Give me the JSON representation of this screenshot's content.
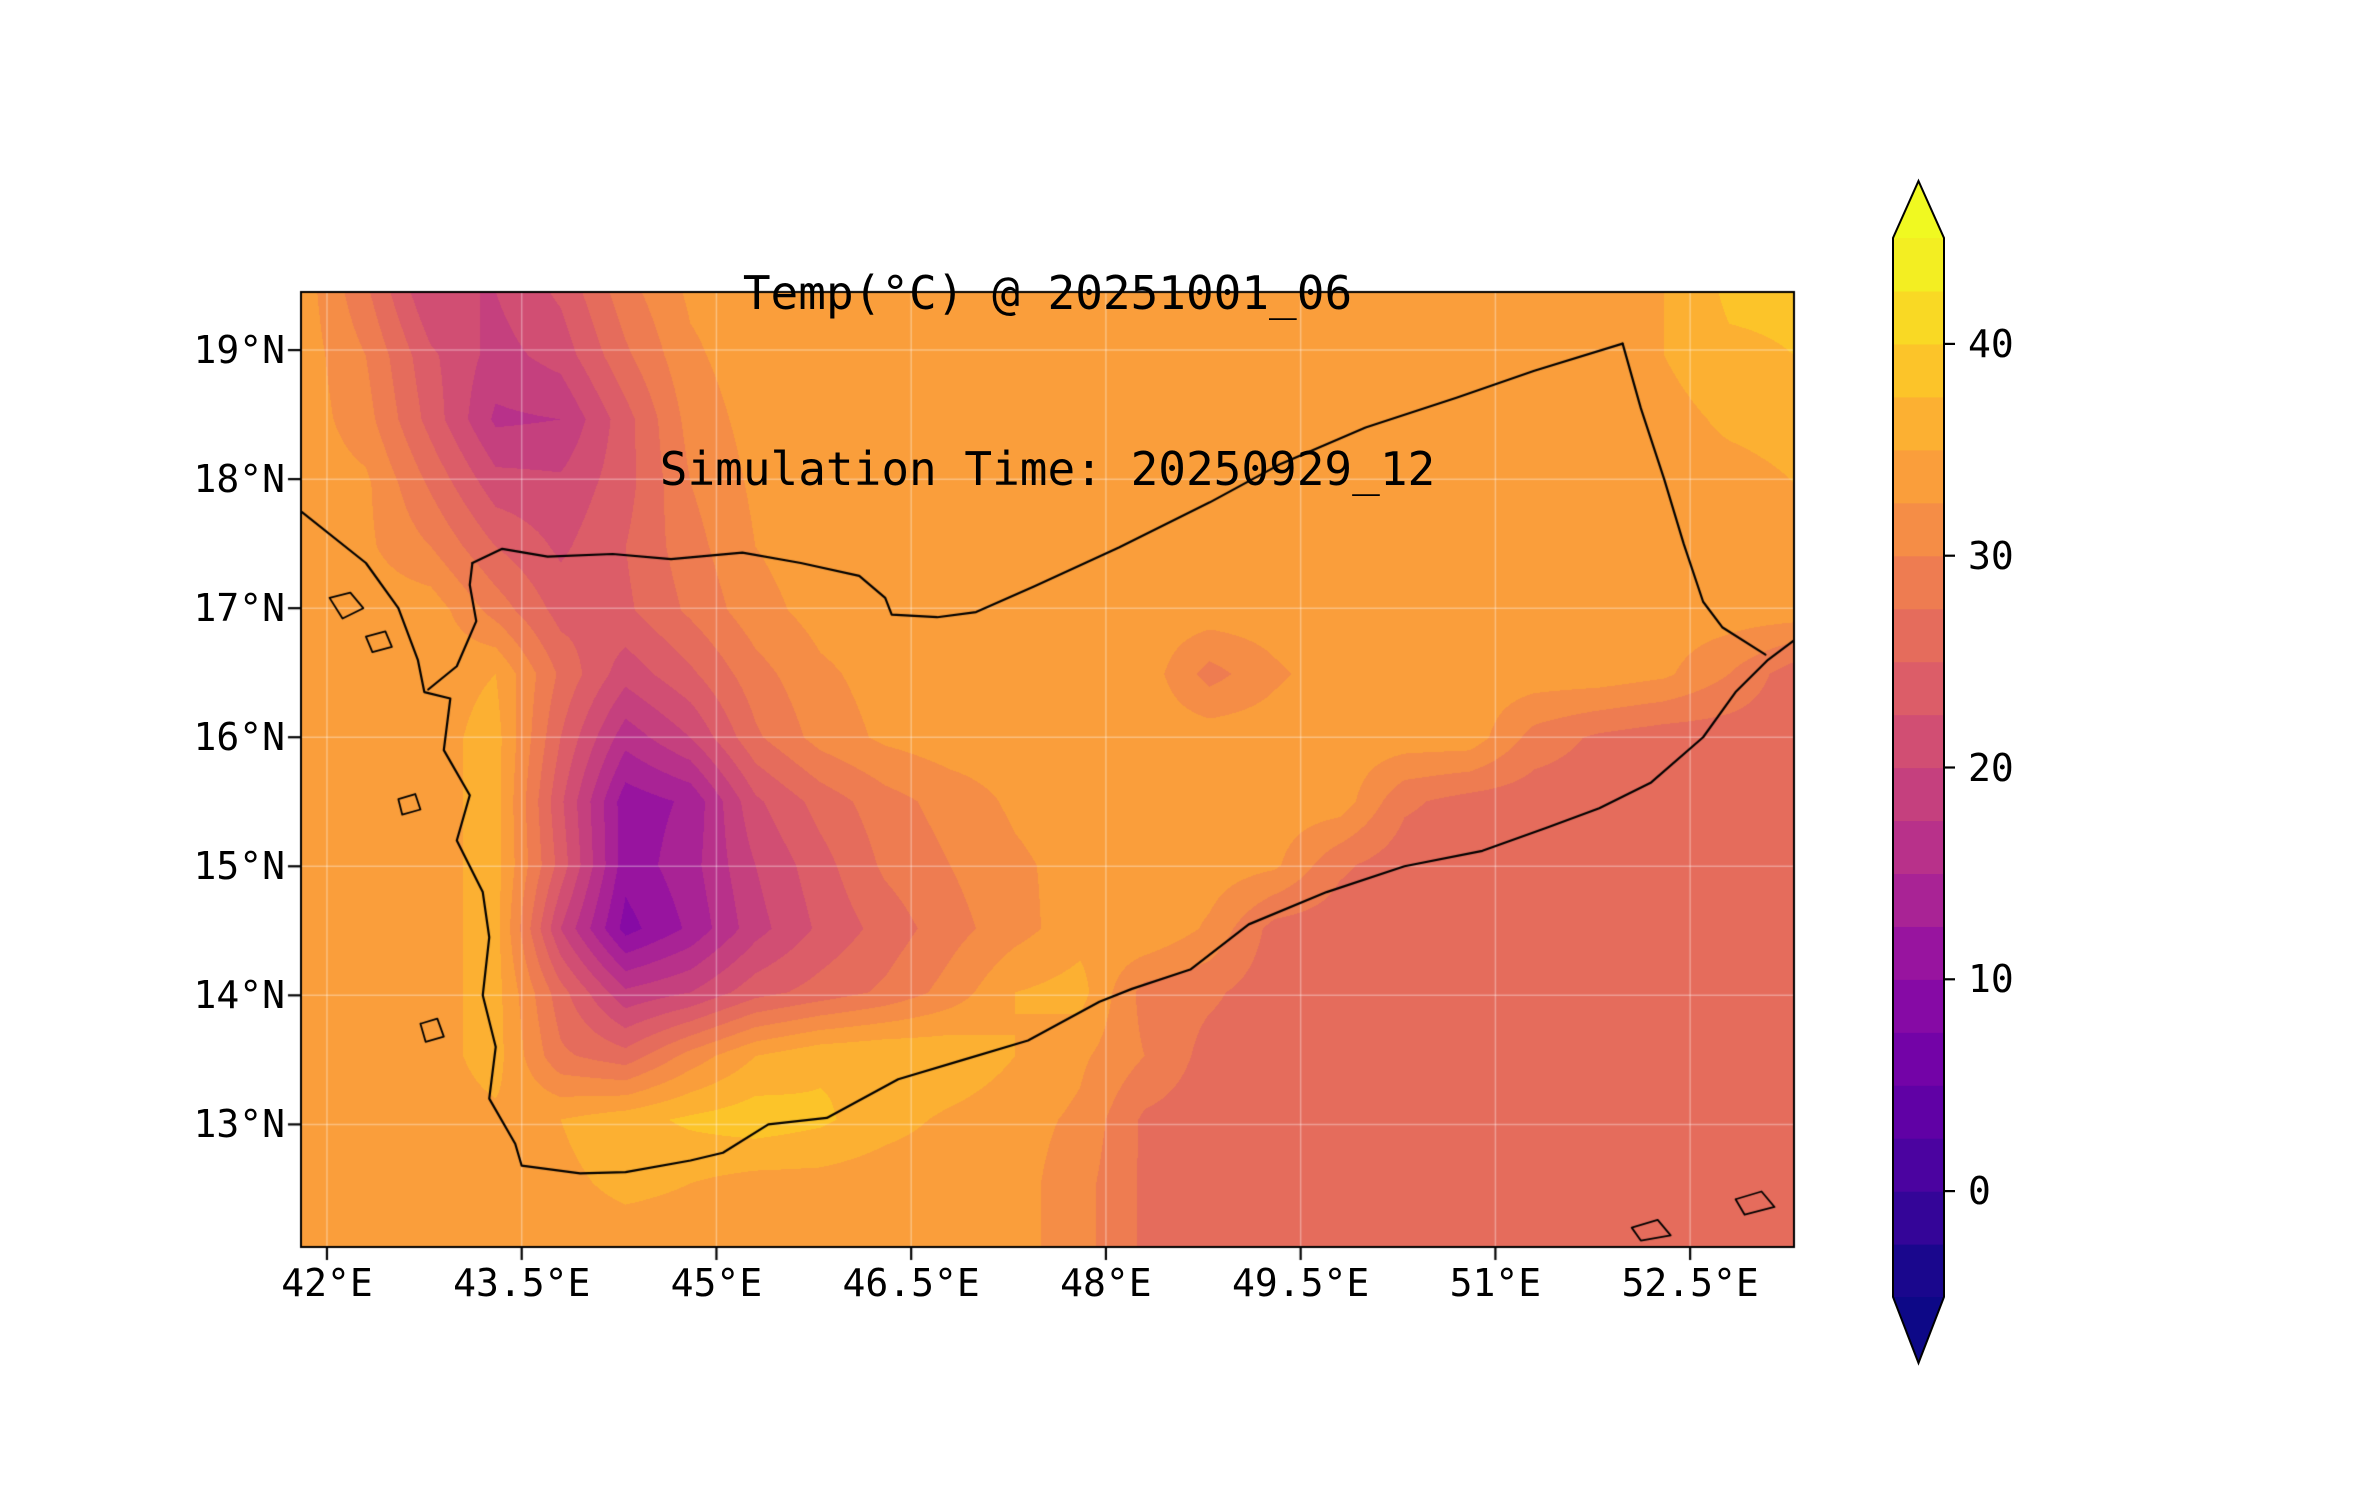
{
  "title": {
    "line1": "Temp(°C) @ 20251001_06",
    "line2": "Simulation Time: 20250929_12"
  },
  "colors": {
    "background": "#ffffff",
    "text": "#000000",
    "map_outline": "#000000"
  },
  "chart_data": {
    "type": "heatmap",
    "subtype": "filled-contour-map",
    "title": "Temp(°C) @ 20251001_06",
    "subtitle": "Simulation Time: 20250929_12",
    "units": "°C",
    "grid_on": true,
    "x_axis": {
      "range": [
        41.8,
        53.3
      ],
      "ticks": [
        {
          "value": 42,
          "label": "42°E"
        },
        {
          "value": 43.5,
          "label": "43.5°E"
        },
        {
          "value": 45,
          "label": "45°E"
        },
        {
          "value": 46.5,
          "label": "46.5°E"
        },
        {
          "value": 48,
          "label": "48°E"
        },
        {
          "value": 49.5,
          "label": "49.5°E"
        },
        {
          "value": 51,
          "label": "51°E"
        },
        {
          "value": 52.5,
          "label": "52.5°E"
        }
      ]
    },
    "y_axis": {
      "range": [
        12.05,
        19.45
      ],
      "ticks": [
        {
          "value": 19,
          "label": "19°N"
        },
        {
          "value": 18,
          "label": "18°N"
        },
        {
          "value": 17,
          "label": "17°N"
        },
        {
          "value": 16,
          "label": "16°N"
        },
        {
          "value": 15,
          "label": "15°N"
        },
        {
          "value": 14,
          "label": "14°N"
        },
        {
          "value": 13,
          "label": "13°N"
        }
      ]
    },
    "colorbar": {
      "levels_min": -5,
      "levels_max": 45,
      "level_step": 2.5,
      "extend": "both",
      "colormap": "plasma",
      "ticks": [
        {
          "value": 40,
          "label": "40"
        },
        {
          "value": 30,
          "label": "30"
        },
        {
          "value": 20,
          "label": "20"
        },
        {
          "value": 10,
          "label": "10"
        },
        {
          "value": 0,
          "label": "0"
        }
      ],
      "colormap_anchors": [
        {
          "t": 0.0,
          "color": "#0d0887"
        },
        {
          "t": 0.1,
          "color": "#41049d"
        },
        {
          "t": 0.2,
          "color": "#6a00a8"
        },
        {
          "t": 0.3,
          "color": "#8f0da4"
        },
        {
          "t": 0.4,
          "color": "#b12a90"
        },
        {
          "t": 0.5,
          "color": "#cc4778"
        },
        {
          "t": 0.6,
          "color": "#e16462"
        },
        {
          "t": 0.7,
          "color": "#f2844b"
        },
        {
          "t": 0.8,
          "color": "#fca636"
        },
        {
          "t": 0.9,
          "color": "#fcce25"
        },
        {
          "t": 1.0,
          "color": "#f0f921"
        }
      ]
    },
    "grid": {
      "lon_min": 41.8,
      "lon_max": 53.3,
      "lat_min": 12.05,
      "lat_max": 19.45,
      "ncols": 24,
      "nrows": 16,
      "values_c": [
        [
          34,
          28,
          20,
          20,
          23,
          29,
          33,
          34,
          34,
          34,
          34,
          34,
          34,
          34,
          34,
          34,
          34,
          34,
          34,
          34,
          34,
          35,
          38,
          38
        ],
        [
          34,
          30,
          23,
          19,
          21,
          27,
          32,
          34,
          34,
          34,
          34,
          34,
          34,
          34,
          34,
          34,
          34,
          34,
          34,
          34,
          34,
          35,
          37,
          37.5
        ],
        [
          34,
          31,
          24,
          17,
          17.5,
          24,
          31,
          33.5,
          34,
          34,
          34,
          34,
          34,
          34,
          34,
          34,
          34,
          34,
          34,
          34,
          34,
          34,
          35.5,
          36
        ],
        [
          34,
          33,
          27,
          21,
          20.5,
          24,
          30,
          33,
          34,
          34,
          34,
          34,
          34,
          34,
          34,
          34,
          34,
          34,
          34,
          34,
          34,
          34,
          34,
          35
        ],
        [
          33.5,
          33,
          30,
          25,
          22,
          25,
          29,
          32.5,
          34,
          34,
          34,
          34,
          34,
          34,
          34,
          34,
          34,
          34,
          34,
          34,
          34,
          34,
          34,
          34
        ],
        [
          33.5,
          34,
          34,
          29,
          24,
          24.5,
          28,
          31.5,
          33.5,
          34,
          34,
          34,
          34,
          34,
          34,
          34,
          34,
          34,
          34,
          34,
          34,
          34,
          34,
          34
        ],
        [
          33.5,
          34,
          34,
          35,
          27,
          21,
          24.5,
          29,
          32,
          33.5,
          34,
          34,
          34,
          34,
          29,
          32,
          34,
          34,
          34,
          34,
          34,
          33,
          30,
          26
        ],
        [
          33.5,
          34,
          34,
          36,
          25,
          16,
          20,
          27,
          31,
          33,
          34,
          34,
          34,
          34,
          34,
          34,
          34,
          34,
          34,
          29,
          27,
          26,
          26,
          26
        ],
        [
          33.5,
          34,
          34,
          36,
          23,
          11,
          13,
          22,
          26,
          29,
          31,
          33,
          34,
          34,
          34,
          34,
          34,
          28,
          26.5,
          26,
          26,
          26,
          26,
          26
        ],
        [
          33.5,
          34,
          34,
          36,
          24,
          11,
          14,
          20,
          24,
          28,
          30,
          32,
          33.5,
          34,
          34,
          33,
          28,
          26,
          26,
          26,
          26,
          26,
          26,
          26
        ],
        [
          33.5,
          34,
          34,
          36,
          20,
          9,
          13,
          19,
          23,
          26,
          29,
          31.5,
          34,
          35,
          32,
          26.5,
          26,
          26,
          26,
          26,
          26,
          26,
          26,
          26
        ],
        [
          33.5,
          34,
          34,
          36,
          26,
          18,
          20,
          24,
          26,
          28,
          31,
          35,
          36,
          29,
          28,
          26,
          26,
          26,
          26,
          26,
          26,
          26,
          26,
          26
        ],
        [
          34,
          34,
          34,
          36,
          28,
          26,
          31,
          35,
          37,
          37.5,
          37,
          35,
          33,
          30,
          26.5,
          26,
          26,
          26,
          26,
          26,
          26,
          26,
          26,
          26
        ],
        [
          34,
          34,
          34,
          34.5,
          35,
          36.5,
          38,
          39,
          38,
          36,
          34.5,
          33.5,
          32,
          27,
          26,
          26,
          26,
          26,
          26,
          26,
          26,
          26,
          26,
          26
        ],
        [
          34,
          34,
          34,
          34,
          34.5,
          35.5,
          35,
          34,
          34,
          33.5,
          33.5,
          33.5,
          31,
          27,
          26,
          26,
          26,
          26,
          26,
          26,
          26,
          26,
          26,
          26
        ],
        [
          34,
          34,
          34,
          34,
          34,
          34,
          34,
          34,
          34,
          33.5,
          33.5,
          33.5,
          31,
          27,
          26,
          26,
          26,
          26,
          26,
          26,
          26,
          26,
          26,
          26
        ]
      ]
    },
    "overlays": {
      "coastline": [
        [
          41.8,
          17.75
        ],
        [
          42.3,
          17.35
        ],
        [
          42.55,
          17.0
        ],
        [
          42.7,
          16.6
        ],
        [
          42.75,
          16.35
        ],
        [
          42.95,
          16.3
        ],
        [
          42.9,
          15.9
        ],
        [
          43.1,
          15.55
        ],
        [
          43.0,
          15.2
        ],
        [
          43.2,
          14.8
        ],
        [
          43.25,
          14.45
        ],
        [
          43.2,
          14.0
        ],
        [
          43.3,
          13.6
        ],
        [
          43.25,
          13.2
        ],
        [
          43.45,
          12.85
        ],
        [
          43.5,
          12.68
        ],
        [
          43.95,
          12.62
        ],
        [
          44.3,
          12.63
        ],
        [
          44.8,
          12.72
        ],
        [
          45.05,
          12.78
        ],
        [
          45.4,
          13.0
        ],
        [
          45.85,
          13.05
        ],
        [
          46.4,
          13.35
        ],
        [
          46.9,
          13.5
        ],
        [
          47.4,
          13.65
        ],
        [
          47.95,
          13.95
        ],
        [
          48.2,
          14.05
        ],
        [
          48.65,
          14.2
        ],
        [
          49.1,
          14.55
        ],
        [
          49.7,
          14.8
        ],
        [
          50.3,
          15.0
        ],
        [
          50.9,
          15.12
        ],
        [
          51.4,
          15.3
        ],
        [
          51.8,
          15.45
        ],
        [
          52.2,
          15.65
        ],
        [
          52.6,
          16.0
        ],
        [
          52.85,
          16.35
        ],
        [
          53.1,
          16.6
        ],
        [
          53.3,
          16.75
        ]
      ],
      "borders": [
        [
          [
            42.78,
            16.37
          ],
          [
            43.0,
            16.55
          ],
          [
            43.15,
            16.9
          ],
          [
            43.1,
            17.18
          ],
          [
            43.12,
            17.35
          ]
        ],
        [
          [
            43.12,
            17.35
          ],
          [
            43.35,
            17.46
          ],
          [
            43.7,
            17.4
          ],
          [
            44.2,
            17.42
          ],
          [
            44.65,
            17.38
          ],
          [
            45.2,
            17.43
          ],
          [
            45.65,
            17.35
          ],
          [
            46.1,
            17.25
          ],
          [
            46.3,
            17.08
          ],
          [
            46.35,
            16.95
          ],
          [
            46.7,
            16.93
          ],
          [
            47.0,
            16.97
          ],
          [
            47.45,
            17.17
          ],
          [
            48.1,
            17.47
          ],
          [
            48.8,
            17.82
          ],
          [
            49.35,
            18.12
          ],
          [
            50.0,
            18.4
          ],
          [
            50.7,
            18.63
          ],
          [
            51.3,
            18.84
          ],
          [
            51.98,
            19.05
          ]
        ],
        [
          [
            51.98,
            19.05
          ],
          [
            52.12,
            18.55
          ],
          [
            52.3,
            18.0
          ],
          [
            52.45,
            17.5
          ],
          [
            52.6,
            17.05
          ],
          [
            52.75,
            16.85
          ],
          [
            53.08,
            16.64
          ]
        ]
      ],
      "islands": [
        [
          [
            42.02,
            17.08
          ],
          [
            42.18,
            17.12
          ],
          [
            42.28,
            17.0
          ],
          [
            42.12,
            16.92
          ],
          [
            42.02,
            17.08
          ]
        ],
        [
          [
            42.3,
            16.78
          ],
          [
            42.45,
            16.82
          ],
          [
            42.5,
            16.7
          ],
          [
            42.35,
            16.66
          ],
          [
            42.3,
            16.78
          ]
        ],
        [
          [
            42.55,
            15.52
          ],
          [
            42.68,
            15.56
          ],
          [
            42.72,
            15.44
          ],
          [
            42.58,
            15.4
          ],
          [
            42.55,
            15.52
          ]
        ],
        [
          [
            42.72,
            13.78
          ],
          [
            42.85,
            13.82
          ],
          [
            42.9,
            13.68
          ],
          [
            42.76,
            13.64
          ],
          [
            42.72,
            13.78
          ]
        ],
        [
          [
            52.05,
            12.2
          ],
          [
            52.25,
            12.26
          ],
          [
            52.35,
            12.14
          ],
          [
            52.12,
            12.1
          ],
          [
            52.05,
            12.2
          ]
        ],
        [
          [
            52.85,
            12.42
          ],
          [
            53.05,
            12.48
          ],
          [
            53.15,
            12.36
          ],
          [
            52.92,
            12.3
          ],
          [
            52.85,
            12.42
          ]
        ]
      ]
    }
  }
}
